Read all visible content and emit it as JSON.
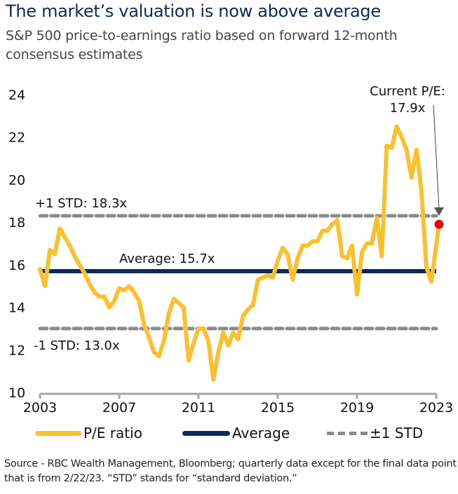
{
  "title": "The market’s valuation is now above average",
  "subtitle": "S&P 500 price-to-earnings ratio based on forward 12-month consensus estimates",
  "colors": {
    "pe_line": "#fbc02d",
    "average_line": "#0d2a5e",
    "std_line": "#8a8a8a",
    "current_marker": "#e30613",
    "title": "#0d2a5e"
  },
  "chart_data": {
    "type": "line",
    "title": "The market’s valuation is now above average",
    "subtitle": "S&P 500 price-to-earnings ratio based on forward 12-month consensus estimates",
    "xlabel": "",
    "ylabel": "",
    "xlim": [
      2003,
      2023
    ],
    "ylim": [
      10,
      24
    ],
    "x_ticks": [
      2003,
      2007,
      2011,
      2015,
      2019,
      2023
    ],
    "y_ticks": [
      10,
      12,
      14,
      16,
      18,
      20,
      22,
      24
    ],
    "grid": false,
    "legend_position": "bottom",
    "series": [
      {
        "name": "P/E ratio",
        "frequency": "quarterly",
        "x": [
          2003.0,
          2003.25,
          2003.5,
          2003.75,
          2004.0,
          2004.25,
          2004.5,
          2004.75,
          2005.0,
          2005.25,
          2005.5,
          2005.75,
          2006.0,
          2006.25,
          2006.5,
          2006.75,
          2007.0,
          2007.25,
          2007.5,
          2007.75,
          2008.0,
          2008.25,
          2008.5,
          2008.75,
          2009.0,
          2009.25,
          2009.5,
          2009.75,
          2010.0,
          2010.25,
          2010.5,
          2010.75,
          2011.0,
          2011.25,
          2011.5,
          2011.75,
          2012.0,
          2012.25,
          2012.5,
          2012.75,
          2013.0,
          2013.25,
          2013.5,
          2013.75,
          2014.0,
          2014.25,
          2014.5,
          2014.75,
          2015.0,
          2015.25,
          2015.5,
          2015.75,
          2016.0,
          2016.25,
          2016.5,
          2016.75,
          2017.0,
          2017.25,
          2017.5,
          2017.75,
          2018.0,
          2018.25,
          2018.5,
          2018.75,
          2019.0,
          2019.25,
          2019.5,
          2019.75,
          2020.0,
          2020.25,
          2020.5,
          2020.75,
          2021.0,
          2021.25,
          2021.5,
          2021.75,
          2022.0,
          2022.25,
          2022.5,
          2022.75,
          2023.14
        ],
        "values": [
          15.8,
          15.0,
          16.7,
          16.5,
          17.7,
          17.3,
          16.9,
          16.4,
          16.0,
          15.6,
          15.1,
          14.7,
          14.5,
          14.5,
          14.0,
          14.3,
          14.9,
          14.8,
          15.0,
          14.7,
          14.3,
          13.2,
          12.6,
          11.9,
          11.7,
          12.4,
          13.7,
          14.4,
          14.2,
          14.0,
          11.5,
          12.3,
          13.0,
          13.0,
          12.4,
          10.6,
          11.9,
          12.8,
          12.2,
          12.8,
          12.5,
          13.6,
          13.9,
          14.1,
          15.3,
          15.4,
          15.5,
          15.4,
          16.2,
          16.8,
          16.5,
          15.3,
          16.3,
          16.9,
          16.9,
          17.1,
          17.1,
          17.6,
          17.6,
          17.9,
          18.1,
          16.4,
          16.3,
          16.9,
          14.6,
          16.6,
          17.0,
          17.0,
          18.2,
          16.4,
          21.6,
          21.5,
          22.5,
          22.0,
          21.4,
          20.1,
          21.4,
          19.5,
          15.9,
          15.2,
          17.9
        ]
      },
      {
        "name": "Average",
        "value": 15.7
      },
      {
        "name": "±1 STD",
        "upper": 18.3,
        "lower": 13.0
      }
    ],
    "current_point": {
      "date": "2/22/23",
      "value": 17.9
    },
    "annotations": {
      "upper_std": "+1 STD: 18.3x",
      "lower_std": "-1 STD: 13.0x",
      "average": "Average: 15.7x",
      "current_line1": "Current P/E:",
      "current_line2": "17.9x"
    },
    "legend": [
      "P/E ratio",
      "Average",
      "±1 STD"
    ]
  },
  "source": "Source - RBC Wealth Management, Bloomberg; quarterly data except for the final data point that is from 2/22/23. “STD” stands for “standard deviation.”"
}
